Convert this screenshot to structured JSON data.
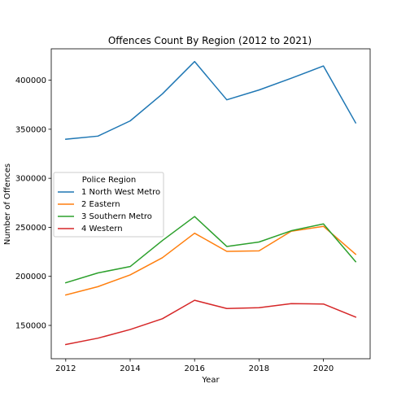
{
  "chart_data": {
    "type": "line",
    "title": "Offences Count By Region (2012 to 2021)",
    "xlabel": "Year",
    "ylabel": "Number of Offences",
    "x": [
      2012,
      2013,
      2014,
      2015,
      2016,
      2017,
      2018,
      2019,
      2020,
      2021
    ],
    "xlim": [
      2011.55,
      2021.45
    ],
    "ylim": [
      116000,
      432000
    ],
    "xticks": [
      2012,
      2014,
      2016,
      2018,
      2020
    ],
    "yticks": [
      150000,
      200000,
      250000,
      300000,
      350000,
      400000
    ],
    "grid": false,
    "legend_title": "Police Region",
    "legend_placement": "center-left",
    "series": [
      {
        "name": "1 North West Metro",
        "color": "#1f77b4",
        "values": [
          339800,
          343000,
          358500,
          386000,
          419000,
          380000,
          390000,
          402000,
          414500,
          356500
        ]
      },
      {
        "name": "2 Eastern",
        "color": "#ff7f0e",
        "values": [
          181000,
          189500,
          201500,
          219000,
          244000,
          225500,
          226000,
          246000,
          251000,
          222500
        ]
      },
      {
        "name": "3 Southern Metro",
        "color": "#2ca02c",
        "values": [
          193500,
          203500,
          210000,
          236500,
          261000,
          230500,
          235000,
          246500,
          253500,
          215000
        ]
      },
      {
        "name": "4 Western",
        "color": "#d62728",
        "values": [
          130500,
          137000,
          145800,
          156800,
          175600,
          167200,
          168000,
          172200,
          171800,
          158500
        ]
      }
    ]
  }
}
